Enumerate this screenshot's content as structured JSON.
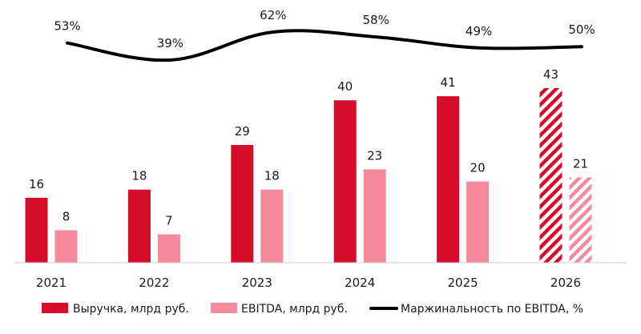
{
  "chart_data": {
    "type": "bar",
    "categories": [
      "2021",
      "2022",
      "2023",
      "2024",
      "2025",
      "2026"
    ],
    "forecast_categories": [
      "2026"
    ],
    "series": [
      {
        "name": "Выручка, млрд руб.",
        "kind": "bar",
        "color": "#d50d2b",
        "values": [
          16,
          18,
          29,
          40,
          41,
          43
        ],
        "labels": [
          "16",
          "18",
          "29",
          "40",
          "41",
          "43"
        ]
      },
      {
        "name": "EBITDA, млрд руб.",
        "kind": "bar",
        "color": "#f68a9d",
        "values": [
          8,
          7,
          18,
          23,
          20,
          21
        ],
        "labels": [
          "8",
          "7",
          "18",
          "23",
          "20",
          "21"
        ]
      },
      {
        "name": "Маржинальность по EBITDA, %",
        "kind": "line",
        "color": "#000000",
        "values": [
          53,
          39,
          62,
          58,
          49,
          50
        ],
        "labels": [
          "53%",
          "39%",
          "62%",
          "58%",
          "49%",
          "50%"
        ]
      }
    ],
    "bar_ylim": [
      0,
      50
    ],
    "line_ylim": [
      0,
      100
    ],
    "legend_position": "bottom"
  }
}
